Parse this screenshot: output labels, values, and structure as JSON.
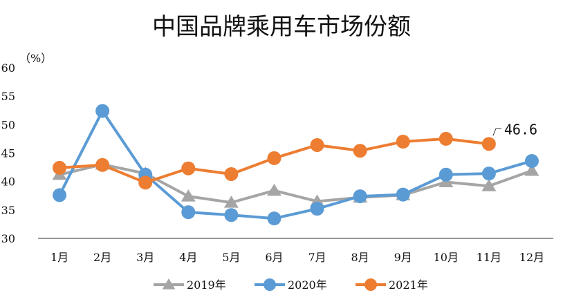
{
  "chart_data": {
    "type": "line",
    "title": "中国品牌乘用车市场份额",
    "unit_label": "（%）",
    "categories": [
      "1月",
      "2月",
      "3月",
      "4月",
      "5月",
      "6月",
      "7月",
      "8月",
      "9月",
      "10月",
      "11月",
      "12月"
    ],
    "ylim": [
      30,
      60
    ],
    "yticks": [
      "30",
      "35",
      "40",
      "45",
      "50",
      "55",
      "60"
    ],
    "grid": false,
    "legend_position": "bottom",
    "series": [
      {
        "name": "2019年",
        "marker": "triangle",
        "color": "#a5a5a5",
        "values": [
          41.2,
          43.0,
          41.4,
          37.4,
          36.3,
          38.4,
          36.5,
          37.2,
          37.6,
          39.9,
          39.2,
          41.9
        ]
      },
      {
        "name": "2020年",
        "marker": "circle",
        "color": "#5b9bd5",
        "values": [
          37.6,
          52.4,
          41.2,
          34.6,
          34.1,
          33.5,
          35.2,
          37.4,
          37.7,
          41.2,
          41.4,
          43.6
        ]
      },
      {
        "name": "2021年",
        "marker": "circle",
        "color": "#ed7d31",
        "values": [
          42.4,
          42.9,
          39.8,
          42.3,
          41.3,
          44.1,
          46.4,
          45.4,
          47.0,
          47.5,
          46.6,
          null
        ]
      }
    ],
    "annotation": {
      "series": "2021年",
      "index": 10,
      "text": "46.6"
    }
  }
}
